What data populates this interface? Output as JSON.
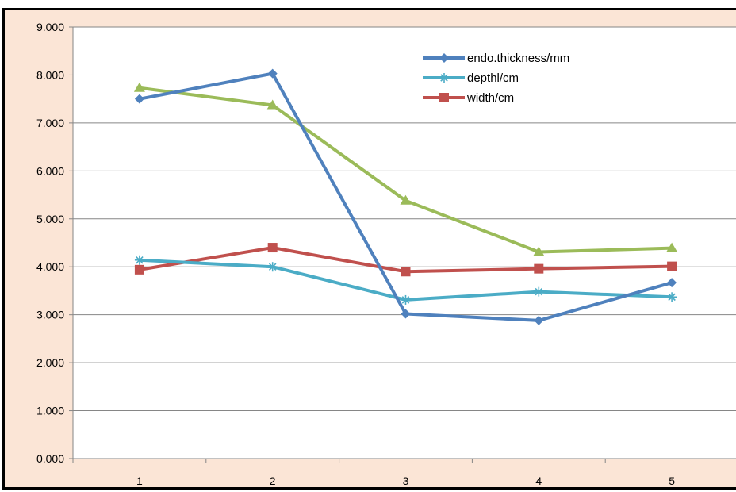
{
  "chart_data": {
    "type": "line",
    "title": "",
    "xlabel": "",
    "ylabel": "",
    "categories": [
      "1",
      "2",
      "3",
      "4",
      "5"
    ],
    "ylim": [
      0,
      9
    ],
    "y_ticks": [
      "0.000",
      "1.000",
      "2.000",
      "3.000",
      "4.000",
      "5.000",
      "6.000",
      "7.000",
      "8.000",
      "9.000"
    ],
    "grid": "horizontal",
    "legend_position": "top-right",
    "series": [
      {
        "name": "endo.thickness/mm",
        "values": [
          7.5,
          8.03,
          3.02,
          2.88,
          3.67
        ],
        "color": "#4f81bd",
        "marker": "diamond"
      },
      {
        "name": "depthl/cm",
        "values": [
          4.14,
          4.0,
          3.31,
          3.48,
          3.37
        ],
        "color": "#4bacc6",
        "marker": "asterisk"
      },
      {
        "name": "width/cm",
        "values": [
          3.94,
          4.4,
          3.9,
          3.96,
          4.01
        ],
        "color": "#c0504d",
        "marker": "square"
      },
      {
        "name": "",
        "values": [
          7.73,
          7.37,
          5.38,
          4.31,
          4.39
        ],
        "color": "#9bbb59",
        "marker": "triangle"
      }
    ]
  }
}
